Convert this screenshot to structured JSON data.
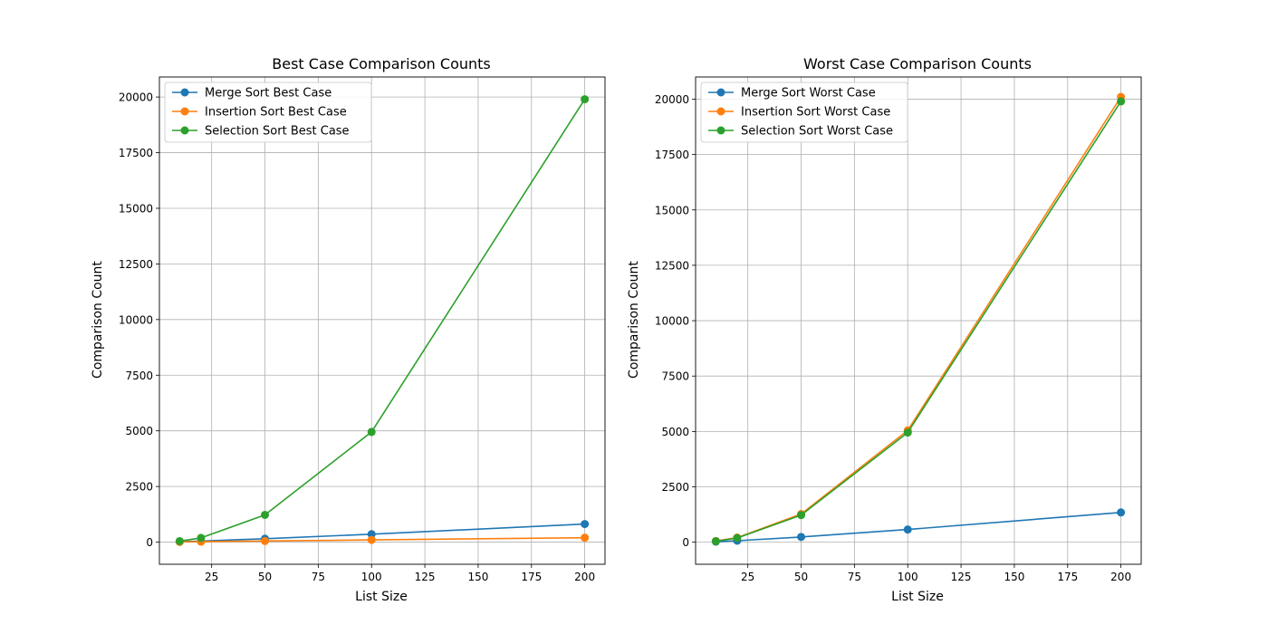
{
  "chart_data": [
    {
      "type": "line",
      "title": "Best Case Comparison Counts",
      "xlabel": "List Size",
      "ylabel": "Comparison Count",
      "x": [
        10,
        20,
        50,
        100,
        200
      ],
      "xlim": [
        0.5,
        209.5
      ],
      "ylim": [
        -995,
        20900
      ],
      "xticks": [
        25,
        50,
        75,
        100,
        125,
        150,
        175,
        200
      ],
      "yticks": [
        0,
        2500,
        5000,
        7500,
        10000,
        12500,
        15000,
        17500,
        20000
      ],
      "grid": true,
      "legend_position": "upper-left",
      "series": [
        {
          "name": "Merge Sort Best Case",
          "color": "#1f77b4",
          "values": [
            19,
            48,
            153,
            356,
            812
          ]
        },
        {
          "name": "Insertion Sort Best Case",
          "color": "#ff7f0e",
          "values": [
            9,
            19,
            49,
            99,
            199
          ]
        },
        {
          "name": "Selection Sort Best Case",
          "color": "#2ca02c",
          "values": [
            45,
            190,
            1225,
            4950,
            19900
          ]
        }
      ]
    },
    {
      "type": "line",
      "title": "Worst Case Comparison Counts",
      "xlabel": "List Size",
      "ylabel": "Comparison Count",
      "x": [
        10,
        20,
        50,
        100,
        200
      ],
      "xlim": [
        0.5,
        209.5
      ],
      "ylim": [
        -995,
        21000
      ],
      "xticks": [
        25,
        50,
        75,
        100,
        125,
        150,
        175,
        200
      ],
      "yticks": [
        0,
        2500,
        5000,
        7500,
        10000,
        12500,
        15000,
        17500,
        20000
      ],
      "grid": true,
      "legend_position": "upper-left",
      "series": [
        {
          "name": "Merge Sort Worst Case",
          "color": "#1f77b4",
          "values": [
            25,
            69,
            237,
            573,
            1345
          ]
        },
        {
          "name": "Insertion Sort Worst Case",
          "color": "#ff7f0e",
          "values": [
            54,
            209,
            1274,
            5049,
            20099
          ]
        },
        {
          "name": "Selection Sort Worst Case",
          "color": "#2ca02c",
          "values": [
            45,
            190,
            1225,
            4950,
            19900
          ]
        }
      ]
    }
  ]
}
